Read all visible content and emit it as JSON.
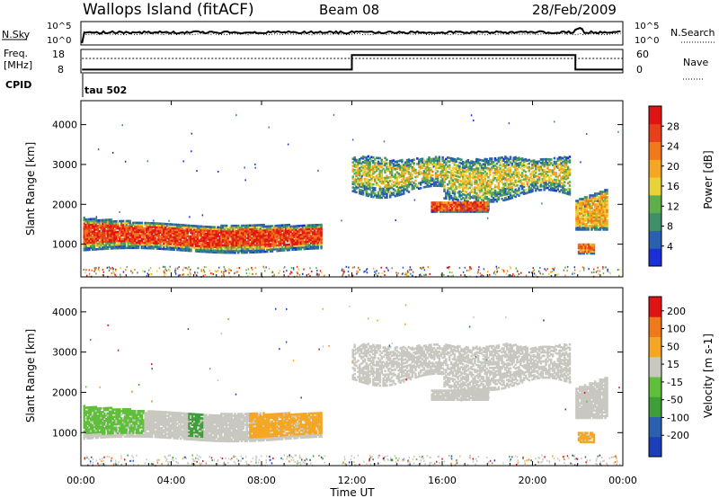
{
  "header": {
    "title": "Wallops Island (fitACF)",
    "beam": "Beam 08",
    "date": "28/Feb/2009"
  },
  "top_panels": {
    "nsky_label": "N.Sky",
    "nsky_ticks": [
      "10^5",
      "10^0"
    ],
    "nsearch_label": "N.Search",
    "nsearch_ticks": [
      "10^5",
      "10^0"
    ],
    "freq_label_line1": "Freq.",
    "freq_label_line2": "[MHz]",
    "freq_ticks": [
      "18",
      "8"
    ],
    "nave_label": "Nave",
    "nave_ticks": [
      "60",
      "0"
    ],
    "cpid_label": "CPID",
    "cpid_value": "tau 502"
  },
  "colors": {
    "power": [
      "#1a2fd6",
      "#2b5fb0",
      "#3e8f6a",
      "#5fae4a",
      "#e8d23a",
      "#f5a623",
      "#f07a1a",
      "#e8401a",
      "#e01414"
    ],
    "velocity": [
      "#e01414",
      "#f07a1a",
      "#f5a623",
      "#c8c8c0",
      "#5fbf3a",
      "#3e9f3a",
      "#2b5fb0",
      "#1a3fb8"
    ]
  },
  "chart_data": [
    {
      "type": "heatmap",
      "name": "power",
      "ylabel": "Slant Range [km]",
      "yticks": [
        "1000",
        "2000",
        "3000",
        "4000"
      ],
      "ylim": [
        180,
        4600
      ],
      "xlim_hours": [
        0,
        24
      ],
      "colorbar_label": "Power [dB]",
      "colorbar_ticks": [
        "4",
        "8",
        "12",
        "16",
        "20",
        "24",
        "28"
      ],
      "colorbar_range": [
        0,
        32
      ]
    },
    {
      "type": "heatmap",
      "name": "velocity",
      "ylabel": "Slant Range [km]",
      "yticks": [
        "1000",
        "2000",
        "3000",
        "4000"
      ],
      "ylim": [
        180,
        4600
      ],
      "xlim_hours": [
        0,
        24
      ],
      "colorbar_label": "Velocity [m s-1]",
      "colorbar_ticks": [
        "200",
        "100",
        "50",
        "15",
        "-15",
        "-50",
        "-100",
        "-200"
      ]
    }
  ],
  "xaxis": {
    "label": "Time UT",
    "ticks": [
      "00:00",
      "04:00",
      "08:00",
      "12:00",
      "16:00",
      "20:00",
      "00:00"
    ]
  }
}
